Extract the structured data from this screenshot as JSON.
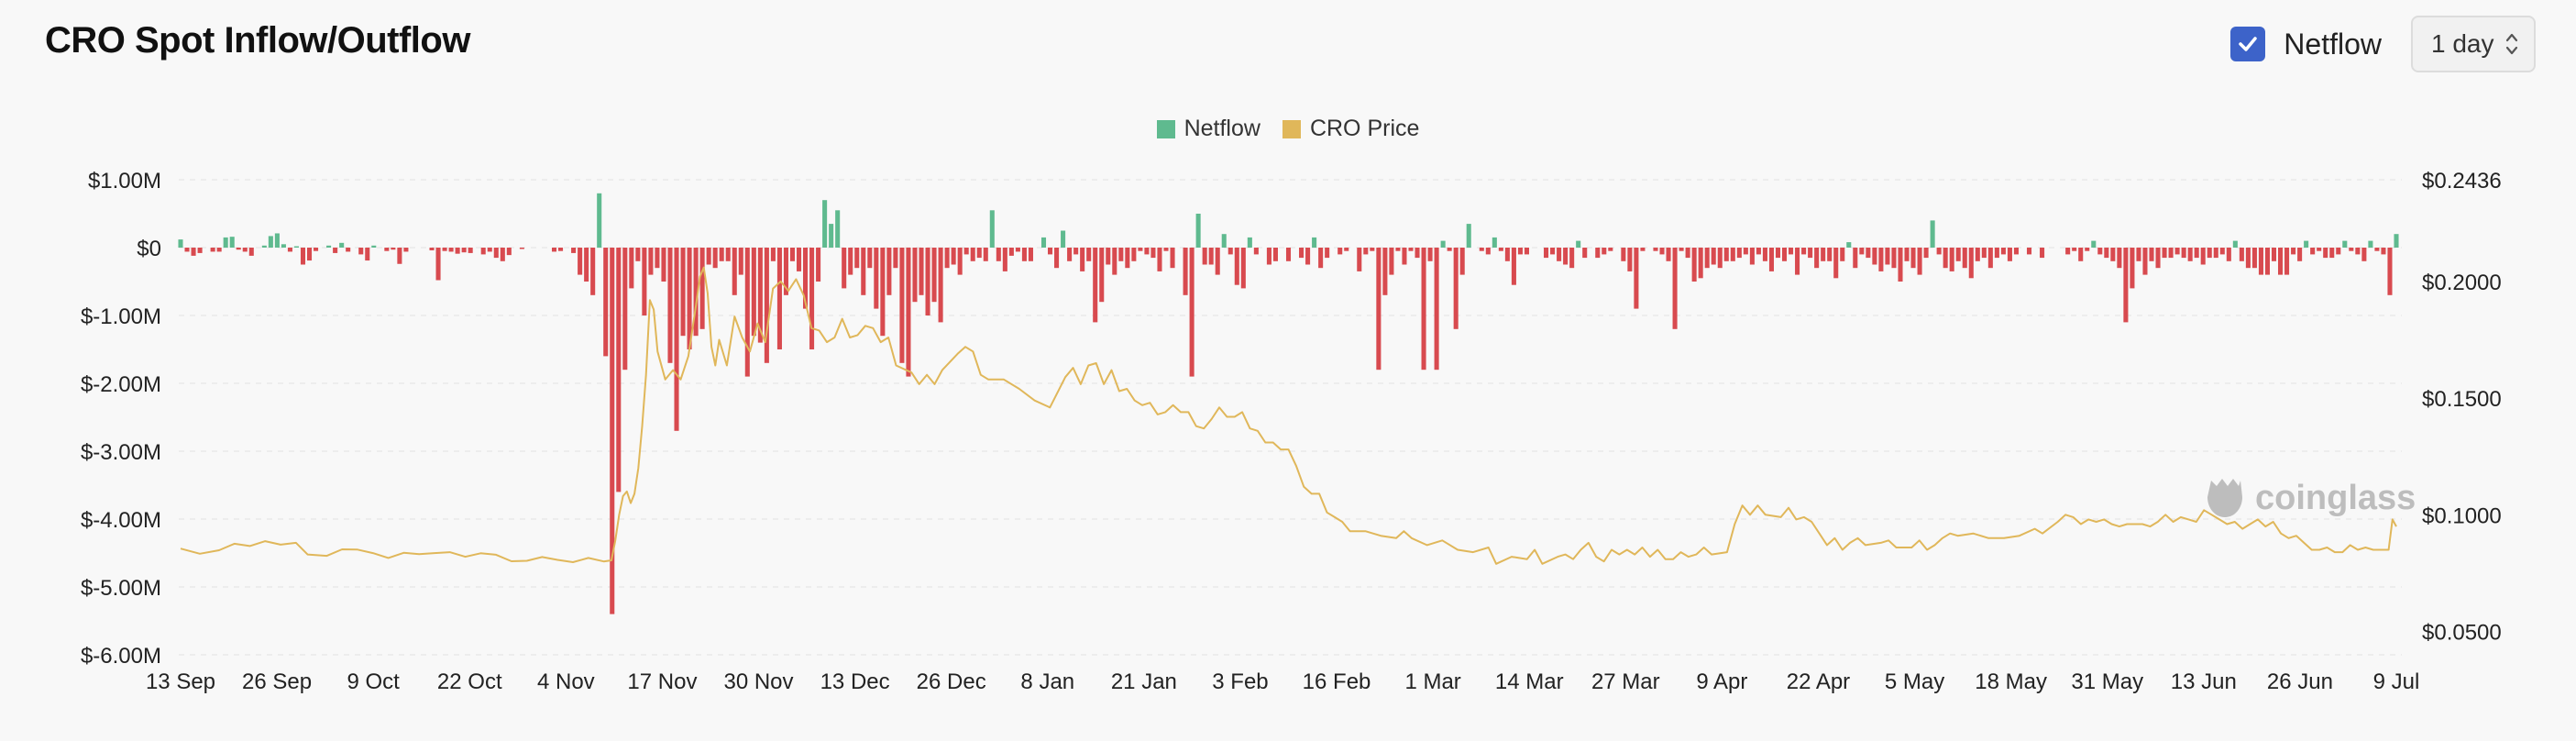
{
  "header": {
    "title": "CRO Spot Inflow/Outflow"
  },
  "controls": {
    "netflow_label": "Netflow",
    "netflow_checked": true,
    "interval": "1 day"
  },
  "watermark": "coinglass",
  "colors": {
    "inflow": "#5fba8f",
    "outflow": "#d84a4f",
    "price": "#e0b75a",
    "checkbox": "#3d63c9"
  },
  "chart_data": {
    "type": "bar+line",
    "title": "CRO Spot Inflow/Outflow",
    "legend": [
      "Netflow",
      "CRO Price"
    ],
    "legend_position": "top-center",
    "grid": true,
    "x_ticks": [
      "13 Sep",
      "26 Sep",
      "9 Oct",
      "22 Oct",
      "4 Nov",
      "17 Nov",
      "30 Nov",
      "13 Dec",
      "26 Dec",
      "8 Jan",
      "21 Jan",
      "3 Feb",
      "16 Feb",
      "1 Mar",
      "14 Mar",
      "27 Mar",
      "9 Apr",
      "22 Apr",
      "5 May",
      "18 May",
      "31 May",
      "13 Jun",
      "26 Jun",
      "9 Jul"
    ],
    "y_left": {
      "label": "Netflow",
      "ticks": [
        "$1.00M",
        "$0",
        "$-1.00M",
        "$-2.00M",
        "$-3.00M",
        "$-4.00M",
        "$-5.00M",
        "$-6.00M"
      ],
      "range": [
        -6000000,
        1000000
      ]
    },
    "y_right": {
      "label": "CRO Price",
      "ticks": [
        "$0.2436",
        "$0.2000",
        "$0.1500",
        "$0.1000",
        "$0.0500"
      ],
      "range": [
        0.04,
        0.2436
      ]
    },
    "netflow": {
      "name": "Netflow",
      "start_date": "13 Sep",
      "interval_days": 1,
      "values": [
        120000,
        -60000,
        -120000,
        -80000,
        0,
        -60000,
        -60000,
        150000,
        160000,
        -30000,
        -60000,
        -120000,
        0,
        30000,
        170000,
        210000,
        50000,
        -60000,
        20000,
        -250000,
        -190000,
        -50000,
        0,
        30000,
        -80000,
        70000,
        -60000,
        0,
        -100000,
        -190000,
        30000,
        0,
        -50000,
        -30000,
        -240000,
        -60000,
        0,
        0,
        0,
        -40000,
        -480000,
        -50000,
        -60000,
        -90000,
        -70000,
        -80000,
        0,
        -100000,
        -60000,
        -150000,
        -200000,
        -110000,
        0,
        -20000,
        0,
        0,
        0,
        0,
        -60000,
        -50000,
        0,
        -80000,
        -400000,
        -500000,
        -700000,
        800000,
        -1600000,
        -5400000,
        -3600000,
        -1800000,
        -600000,
        -200000,
        -1000000,
        -400000,
        -300000,
        -500000,
        -1700000,
        -2700000,
        -1300000,
        -1500000,
        -1300000,
        -1200000,
        -250000,
        -300000,
        -200000,
        -200000,
        -700000,
        -400000,
        -1900000,
        -1300000,
        -1400000,
        -1700000,
        -200000,
        -1500000,
        -700000,
        -200000,
        -350000,
        -900000,
        -1500000,
        -500000,
        700000,
        350000,
        550000,
        -600000,
        -400000,
        -300000,
        -700000,
        -300000,
        -900000,
        -1300000,
        -700000,
        -300000,
        -1700000,
        -1900000,
        -800000,
        -700000,
        -1000000,
        -800000,
        -1100000,
        -300000,
        -250000,
        -400000,
        -100000,
        -200000,
        -150000,
        -200000,
        550000,
        -200000,
        -350000,
        -120000,
        -60000,
        -200000,
        -200000,
        0,
        150000,
        -100000,
        -300000,
        250000,
        -200000,
        -100000,
        -350000,
        -200000,
        -1100000,
        -800000,
        -250000,
        -400000,
        -200000,
        -300000,
        -200000,
        -50000,
        -100000,
        -150000,
        -350000,
        -50000,
        -300000,
        0,
        -700000,
        -1900000,
        500000,
        -250000,
        -250000,
        -400000,
        200000,
        -100000,
        -550000,
        -600000,
        150000,
        -100000,
        0,
        -250000,
        -200000,
        0,
        -200000,
        0,
        -150000,
        -250000,
        150000,
        -300000,
        -150000,
        0,
        -100000,
        -50000,
        0,
        -350000,
        -100000,
        -50000,
        -1800000,
        -700000,
        -400000,
        -50000,
        -250000,
        -50000,
        -150000,
        -1800000,
        -200000,
        -1800000,
        100000,
        -50000,
        -1200000,
        -400000,
        350000,
        0,
        -50000,
        -100000,
        150000,
        -50000,
        -200000,
        -550000,
        -100000,
        -100000,
        0,
        0,
        -150000,
        -100000,
        -200000,
        -250000,
        -300000,
        100000,
        -150000,
        0,
        -150000,
        -100000,
        -50000,
        0,
        -200000,
        -350000,
        -900000,
        -50000,
        0,
        -50000,
        -100000,
        -200000,
        -1200000,
        -50000,
        -150000,
        -500000,
        -450000,
        -300000,
        -250000,
        -300000,
        -200000,
        -200000,
        -150000,
        -100000,
        -250000,
        -100000,
        -200000,
        -350000,
        -150000,
        -200000,
        -100000,
        -400000,
        -100000,
        -150000,
        -300000,
        -200000,
        -200000,
        -450000,
        -200000,
        80000,
        -300000,
        -100000,
        -150000,
        -250000,
        -350000,
        -250000,
        -300000,
        -500000,
        -200000,
        -300000,
        -400000,
        -150000,
        400000,
        -100000,
        -300000,
        -350000,
        -200000,
        -300000,
        -450000,
        -200000,
        -150000,
        -300000,
        -150000,
        -100000,
        -200000,
        -100000,
        0,
        -100000,
        0,
        -150000,
        0,
        0,
        0,
        -100000,
        -50000,
        -200000,
        -50000,
        100000,
        -100000,
        -150000,
        -200000,
        -300000,
        -1100000,
        -600000,
        -200000,
        -400000,
        -200000,
        -300000,
        -150000,
        -150000,
        -100000,
        -150000,
        -200000,
        -150000,
        -250000,
        -150000,
        -150000,
        -100000,
        -200000,
        100000,
        -200000,
        -300000,
        -300000,
        -400000,
        -400000,
        -200000,
        -400000,
        -400000,
        -100000,
        -200000,
        100000,
        -100000,
        -50000,
        -150000,
        -150000,
        -100000,
        100000,
        -50000,
        -100000,
        -200000,
        100000,
        -50000,
        -100000,
        -700000,
        200000
      ]
    },
    "price": {
      "name": "CRO Price",
      "points": [
        [
          0,
          0.0855
        ],
        [
          5,
          0.0833
        ],
        [
          10,
          0.0848
        ],
        [
          14,
          0.0876
        ],
        [
          18,
          0.0866
        ],
        [
          22,
          0.0887
        ],
        [
          26,
          0.0872
        ],
        [
          30,
          0.088
        ],
        [
          33,
          0.083
        ],
        [
          38,
          0.0824
        ],
        [
          42,
          0.0852
        ],
        [
          46,
          0.0851
        ],
        [
          50,
          0.0836
        ],
        [
          54,
          0.0815
        ],
        [
          58,
          0.0837
        ],
        [
          62,
          0.0831
        ],
        [
          66,
          0.0836
        ],
        [
          70,
          0.084
        ],
        [
          74,
          0.082
        ],
        [
          78,
          0.0835
        ],
        [
          82,
          0.0829
        ],
        [
          86,
          0.0801
        ],
        [
          90,
          0.0803
        ],
        [
          94,
          0.0819
        ],
        [
          98,
          0.0807
        ],
        [
          102,
          0.0797
        ],
        [
          106,
          0.0815
        ],
        [
          110,
          0.08
        ],
        [
          112,
          0.0805
        ],
        [
          113,
          0.089
        ],
        [
          114,
          0.1
        ],
        [
          115,
          0.108
        ],
        [
          116,
          0.11
        ],
        [
          117,
          0.105
        ],
        [
          118,
          0.109
        ],
        [
          119,
          0.12
        ],
        [
          120,
          0.138
        ],
        [
          121,
          0.16
        ],
        [
          122,
          0.192
        ],
        [
          123,
          0.188
        ],
        [
          124,
          0.17
        ],
        [
          126,
          0.158
        ],
        [
          128,
          0.162
        ],
        [
          130,
          0.158
        ],
        [
          132,
          0.168
        ],
        [
          134,
          0.19
        ],
        [
          135,
          0.202
        ],
        [
          136,
          0.206
        ],
        [
          137,
          0.195
        ],
        [
          138,
          0.172
        ],
        [
          139,
          0.164
        ],
        [
          140,
          0.175
        ],
        [
          142,
          0.164
        ],
        [
          144,
          0.185
        ],
        [
          146,
          0.176
        ],
        [
          148,
          0.17
        ],
        [
          150,
          0.182
        ],
        [
          152,
          0.174
        ],
        [
          154,
          0.197
        ],
        [
          156,
          0.2
        ],
        [
          158,
          0.196
        ],
        [
          160,
          0.201
        ],
        [
          162,
          0.194
        ],
        [
          164,
          0.18
        ],
        [
          166,
          0.179
        ],
        [
          168,
          0.174
        ],
        [
          170,
          0.176
        ],
        [
          172,
          0.184
        ],
        [
          174,
          0.176
        ],
        [
          176,
          0.177
        ],
        [
          178,
          0.181
        ],
        [
          180,
          0.18
        ],
        [
          182,
          0.174
        ],
        [
          184,
          0.176
        ],
        [
          186,
          0.164
        ],
        [
          190,
          0.161
        ],
        [
          192,
          0.156
        ],
        [
          194,
          0.16
        ],
        [
          196,
          0.156
        ],
        [
          198,
          0.162
        ],
        [
          202,
          0.169
        ],
        [
          204,
          0.172
        ],
        [
          206,
          0.17
        ],
        [
          208,
          0.16
        ],
        [
          210,
          0.158
        ],
        [
          214,
          0.158
        ],
        [
          218,
          0.154
        ],
        [
          222,
          0.149
        ],
        [
          226,
          0.146
        ],
        [
          230,
          0.159
        ],
        [
          232,
          0.163
        ],
        [
          234,
          0.156
        ],
        [
          236,
          0.164
        ],
        [
          238,
          0.165
        ],
        [
          240,
          0.156
        ],
        [
          242,
          0.162
        ],
        [
          244,
          0.153
        ],
        [
          246,
          0.154
        ],
        [
          248,
          0.149
        ],
        [
          250,
          0.147
        ],
        [
          252,
          0.148
        ],
        [
          254,
          0.143
        ],
        [
          256,
          0.144
        ],
        [
          258,
          0.147
        ],
        [
          260,
          0.144
        ],
        [
          262,
          0.144
        ],
        [
          264,
          0.138
        ],
        [
          266,
          0.137
        ],
        [
          268,
          0.141
        ],
        [
          270,
          0.146
        ],
        [
          272,
          0.142
        ],
        [
          274,
          0.142
        ],
        [
          276,
          0.144
        ],
        [
          278,
          0.137
        ],
        [
          280,
          0.136
        ],
        [
          282,
          0.131
        ],
        [
          284,
          0.131
        ],
        [
          286,
          0.128
        ],
        [
          288,
          0.128
        ],
        [
          290,
          0.121
        ],
        [
          292,
          0.112
        ],
        [
          294,
          0.109
        ],
        [
          296,
          0.109
        ],
        [
          298,
          0.101
        ],
        [
          300,
          0.099
        ],
        [
          302,
          0.097
        ],
        [
          304,
          0.093
        ],
        [
          308,
          0.093
        ],
        [
          312,
          0.091
        ],
        [
          316,
          0.09
        ],
        [
          318,
          0.093
        ],
        [
          320,
          0.09
        ],
        [
          324,
          0.087
        ],
        [
          328,
          0.089
        ],
        [
          332,
          0.085
        ],
        [
          336,
          0.084
        ],
        [
          340,
          0.086
        ],
        [
          342,
          0.079
        ],
        [
          346,
          0.082
        ],
        [
          350,
          0.081
        ],
        [
          352,
          0.085
        ],
        [
          354,
          0.079
        ],
        [
          358,
          0.082
        ],
        [
          360,
          0.083
        ],
        [
          362,
          0.081
        ],
        [
          364,
          0.085
        ],
        [
          366,
          0.088
        ],
        [
          368,
          0.082
        ],
        [
          370,
          0.08
        ],
        [
          372,
          0.085
        ],
        [
          374,
          0.083
        ],
        [
          376,
          0.085
        ],
        [
          378,
          0.083
        ],
        [
          380,
          0.086
        ],
        [
          382,
          0.082
        ],
        [
          384,
          0.085
        ],
        [
          386,
          0.081
        ],
        [
          388,
          0.081
        ],
        [
          390,
          0.084
        ],
        [
          392,
          0.082
        ],
        [
          394,
          0.083
        ],
        [
          396,
          0.086
        ],
        [
          398,
          0.083
        ],
        [
          402,
          0.084
        ],
        [
          404,
          0.096
        ],
        [
          406,
          0.104
        ],
        [
          408,
          0.1
        ],
        [
          410,
          0.104
        ],
        [
          412,
          0.1
        ],
        [
          416,
          0.099
        ],
        [
          418,
          0.103
        ],
        [
          420,
          0.098
        ],
        [
          422,
          0.099
        ],
        [
          424,
          0.097
        ],
        [
          426,
          0.092
        ],
        [
          428,
          0.087
        ],
        [
          430,
          0.09
        ],
        [
          432,
          0.085
        ],
        [
          434,
          0.088
        ],
        [
          436,
          0.09
        ],
        [
          438,
          0.087
        ],
        [
          442,
          0.088
        ],
        [
          444,
          0.089
        ],
        [
          446,
          0.086
        ],
        [
          450,
          0.086
        ],
        [
          452,
          0.089
        ],
        [
          454,
          0.085
        ],
        [
          456,
          0.087
        ],
        [
          458,
          0.09
        ],
        [
          460,
          0.092
        ],
        [
          462,
          0.091
        ],
        [
          466,
          0.092
        ],
        [
          470,
          0.09
        ],
        [
          474,
          0.09
        ],
        [
          478,
          0.091
        ],
        [
          482,
          0.094
        ],
        [
          484,
          0.092
        ],
        [
          488,
          0.097
        ],
        [
          490,
          0.1
        ],
        [
          492,
          0.099
        ],
        [
          494,
          0.096
        ],
        [
          496,
          0.098
        ],
        [
          498,
          0.097
        ],
        [
          500,
          0.098
        ],
        [
          502,
          0.096
        ],
        [
          504,
          0.095
        ],
        [
          506,
          0.096
        ],
        [
          510,
          0.096
        ],
        [
          512,
          0.095
        ],
        [
          514,
          0.097
        ],
        [
          516,
          0.1
        ],
        [
          518,
          0.097
        ],
        [
          520,
          0.099
        ],
        [
          522,
          0.098
        ],
        [
          524,
          0.097
        ],
        [
          526,
          0.102
        ],
        [
          528,
          0.1
        ],
        [
          530,
          0.098
        ],
        [
          532,
          0.096
        ],
        [
          534,
          0.097
        ],
        [
          536,
          0.094
        ],
        [
          538,
          0.096
        ],
        [
          540,
          0.098
        ],
        [
          542,
          0.095
        ],
        [
          544,
          0.097
        ],
        [
          546,
          0.092
        ],
        [
          548,
          0.09
        ],
        [
          550,
          0.091
        ],
        [
          552,
          0.088
        ],
        [
          554,
          0.085
        ],
        [
          556,
          0.085
        ],
        [
          558,
          0.086
        ],
        [
          560,
          0.084
        ],
        [
          562,
          0.084
        ],
        [
          564,
          0.087
        ],
        [
          566,
          0.085
        ],
        [
          568,
          0.086
        ],
        [
          570,
          0.085
        ],
        [
          572,
          0.085
        ],
        [
          574,
          0.085
        ],
        [
          575,
          0.098
        ],
        [
          576,
          0.095
        ]
      ]
    }
  }
}
